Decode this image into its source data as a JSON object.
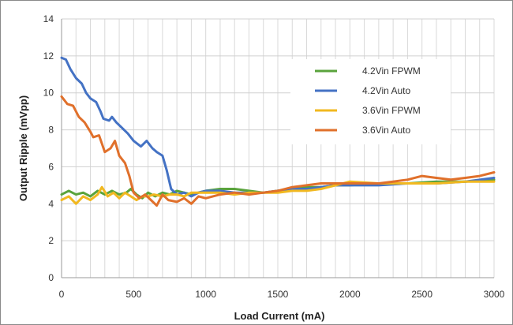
{
  "chart_data": {
    "type": "line",
    "xlabel": "Load Current (mA)",
    "ylabel": "Output Ripple (mVpp)",
    "xlim": [
      0,
      3000
    ],
    "ylim": [
      0,
      14
    ],
    "x_ticks": [
      "0",
      "500",
      "1000",
      "1500",
      "2000",
      "2500",
      "3000"
    ],
    "y_ticks": [
      "0",
      "2",
      "4",
      "6",
      "8",
      "10",
      "12",
      "14"
    ],
    "grid": true,
    "legend_position": "top-right",
    "series": [
      {
        "name": "4.2Vin FPWM",
        "color": "#5aa33c",
        "points": [
          [
            0,
            4.5
          ],
          [
            50,
            4.7
          ],
          [
            100,
            4.5
          ],
          [
            150,
            4.6
          ],
          [
            200,
            4.4
          ],
          [
            250,
            4.7
          ],
          [
            300,
            4.5
          ],
          [
            350,
            4.7
          ],
          [
            400,
            4.5
          ],
          [
            450,
            4.6
          ],
          [
            480,
            4.8
          ],
          [
            520,
            4.5
          ],
          [
            560,
            4.3
          ],
          [
            600,
            4.6
          ],
          [
            650,
            4.4
          ],
          [
            700,
            4.6
          ],
          [
            750,
            4.5
          ],
          [
            800,
            4.7
          ],
          [
            850,
            4.6
          ],
          [
            900,
            4.5
          ],
          [
            950,
            4.6
          ],
          [
            1000,
            4.7
          ],
          [
            1100,
            4.8
          ],
          [
            1200,
            4.8
          ],
          [
            1300,
            4.7
          ],
          [
            1400,
            4.6
          ],
          [
            1500,
            4.7
          ],
          [
            1600,
            4.8
          ],
          [
            1700,
            4.9
          ],
          [
            1800,
            4.9
          ],
          [
            1900,
            5.0
          ],
          [
            2000,
            5.0
          ],
          [
            2200,
            5.1
          ],
          [
            2400,
            5.1
          ],
          [
            2600,
            5.2
          ],
          [
            2800,
            5.2
          ],
          [
            3000,
            5.3
          ]
        ]
      },
      {
        "name": "4.2Vin Auto",
        "color": "#4472c4",
        "points": [
          [
            0,
            11.9
          ],
          [
            30,
            11.8
          ],
          [
            60,
            11.3
          ],
          [
            100,
            10.8
          ],
          [
            140,
            10.5
          ],
          [
            170,
            10.0
          ],
          [
            200,
            9.7
          ],
          [
            240,
            9.5
          ],
          [
            270,
            9.0
          ],
          [
            290,
            8.6
          ],
          [
            330,
            8.5
          ],
          [
            350,
            8.7
          ],
          [
            380,
            8.4
          ],
          [
            420,
            8.1
          ],
          [
            460,
            7.8
          ],
          [
            500,
            7.4
          ],
          [
            550,
            7.1
          ],
          [
            590,
            7.4
          ],
          [
            630,
            7.0
          ],
          [
            660,
            6.8
          ],
          [
            700,
            6.6
          ],
          [
            730,
            5.8
          ],
          [
            760,
            4.8
          ],
          [
            800,
            4.5
          ],
          [
            850,
            4.6
          ],
          [
            900,
            4.4
          ],
          [
            950,
            4.6
          ],
          [
            1000,
            4.7
          ],
          [
            1100,
            4.7
          ],
          [
            1200,
            4.6
          ],
          [
            1300,
            4.6
          ],
          [
            1400,
            4.6
          ],
          [
            1500,
            4.7
          ],
          [
            1600,
            4.8
          ],
          [
            1700,
            4.8
          ],
          [
            1800,
            4.9
          ],
          [
            1900,
            5.0
          ],
          [
            2000,
            5.0
          ],
          [
            2200,
            5.0
          ],
          [
            2400,
            5.1
          ],
          [
            2600,
            5.1
          ],
          [
            2800,
            5.2
          ],
          [
            3000,
            5.4
          ]
        ]
      },
      {
        "name": "3.6Vin FPWM",
        "color": "#f1b820",
        "points": [
          [
            0,
            4.2
          ],
          [
            50,
            4.4
          ],
          [
            100,
            4.0
          ],
          [
            150,
            4.4
          ],
          [
            200,
            4.2
          ],
          [
            250,
            4.5
          ],
          [
            280,
            4.9
          ],
          [
            320,
            4.4
          ],
          [
            360,
            4.6
          ],
          [
            400,
            4.3
          ],
          [
            440,
            4.6
          ],
          [
            480,
            4.4
          ],
          [
            520,
            4.2
          ],
          [
            560,
            4.4
          ],
          [
            600,
            4.4
          ],
          [
            640,
            4.5
          ],
          [
            700,
            4.4
          ],
          [
            750,
            4.5
          ],
          [
            800,
            4.5
          ],
          [
            850,
            4.4
          ],
          [
            900,
            4.6
          ],
          [
            1000,
            4.6
          ],
          [
            1100,
            4.6
          ],
          [
            1200,
            4.5
          ],
          [
            1300,
            4.6
          ],
          [
            1400,
            4.6
          ],
          [
            1500,
            4.6
          ],
          [
            1600,
            4.7
          ],
          [
            1700,
            4.7
          ],
          [
            1800,
            4.8
          ],
          [
            1900,
            5.0
          ],
          [
            2000,
            5.2
          ],
          [
            2200,
            5.1
          ],
          [
            2400,
            5.1
          ],
          [
            2600,
            5.1
          ],
          [
            2800,
            5.2
          ],
          [
            3000,
            5.2
          ]
        ]
      },
      {
        "name": "3.6Vin Auto",
        "color": "#e0702b",
        "points": [
          [
            0,
            9.8
          ],
          [
            40,
            9.4
          ],
          [
            80,
            9.3
          ],
          [
            120,
            8.7
          ],
          [
            160,
            8.4
          ],
          [
            200,
            7.9
          ],
          [
            220,
            7.6
          ],
          [
            260,
            7.7
          ],
          [
            300,
            6.8
          ],
          [
            340,
            7.0
          ],
          [
            370,
            7.4
          ],
          [
            400,
            6.6
          ],
          [
            440,
            6.2
          ],
          [
            470,
            5.5
          ],
          [
            500,
            4.6
          ],
          [
            540,
            4.3
          ],
          [
            580,
            4.5
          ],
          [
            620,
            4.2
          ],
          [
            660,
            3.9
          ],
          [
            700,
            4.5
          ],
          [
            740,
            4.2
          ],
          [
            800,
            4.1
          ],
          [
            850,
            4.3
          ],
          [
            900,
            4.0
          ],
          [
            950,
            4.4
          ],
          [
            1000,
            4.3
          ],
          [
            1050,
            4.4
          ],
          [
            1100,
            4.5
          ],
          [
            1200,
            4.6
          ],
          [
            1300,
            4.5
          ],
          [
            1400,
            4.6
          ],
          [
            1500,
            4.7
          ],
          [
            1600,
            4.9
          ],
          [
            1700,
            5.0
          ],
          [
            1800,
            5.1
          ],
          [
            1900,
            5.1
          ],
          [
            2000,
            5.1
          ],
          [
            2100,
            5.1
          ],
          [
            2200,
            5.1
          ],
          [
            2300,
            5.2
          ],
          [
            2400,
            5.3
          ],
          [
            2500,
            5.5
          ],
          [
            2600,
            5.4
          ],
          [
            2700,
            5.3
          ],
          [
            2800,
            5.4
          ],
          [
            2900,
            5.5
          ],
          [
            3000,
            5.7
          ]
        ]
      }
    ]
  }
}
